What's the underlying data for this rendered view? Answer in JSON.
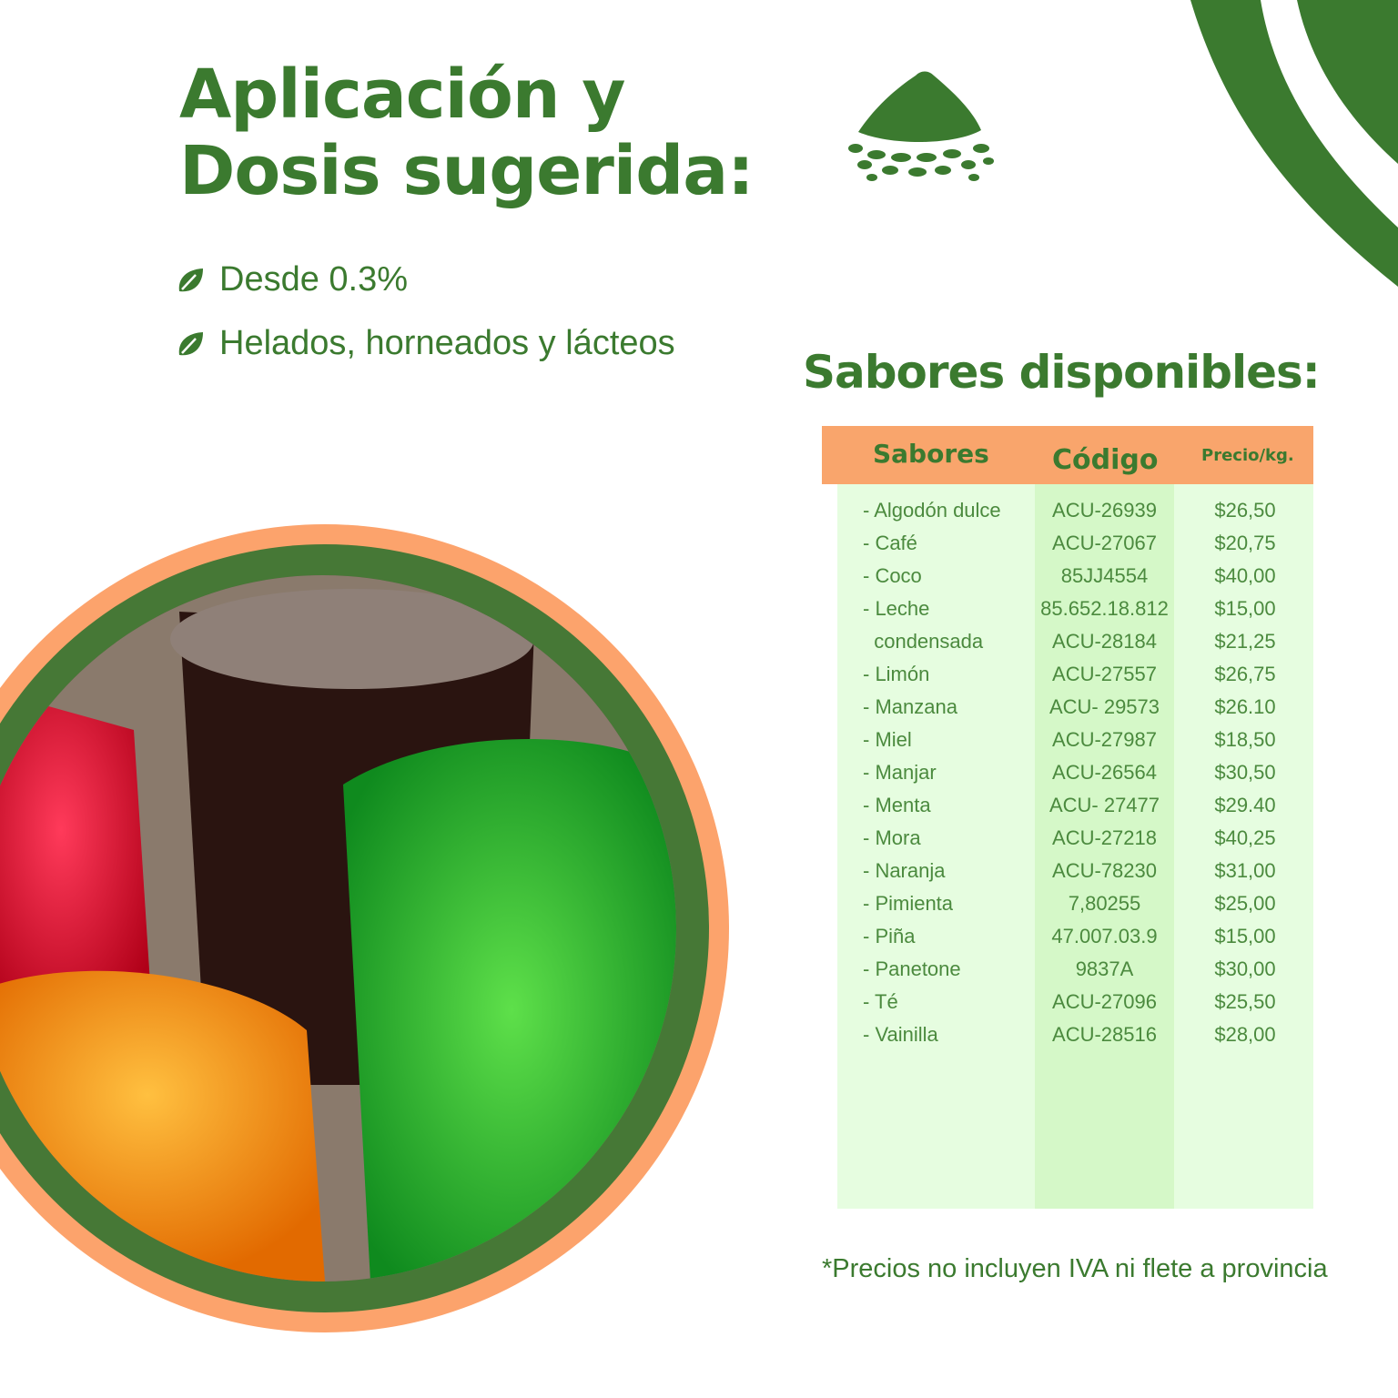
{
  "title": {
    "line1": "Aplicación y",
    "line2": "Dosis sugerida:"
  },
  "bullets": [
    "Desde 0.3%",
    "Helados, horneados y lácteos"
  ],
  "bullet_icon": "leaf-icon",
  "section_title": "Sabores disponibles:",
  "colors": {
    "brand_green": "#3b7a2f",
    "header_orange": "#f9a56c",
    "table_bg": "#e6fde0",
    "code_column_bg": "#d5f8c8"
  },
  "table": {
    "headers": [
      "Sabores",
      "Código",
      "Precio/kg."
    ],
    "rows": [
      [
        "- Algodón dulce",
        "ACU-26939",
        "$26,50"
      ],
      [
        "- Café",
        "ACU-27067",
        "$20,75"
      ],
      [
        "- Coco",
        "85JJ4554",
        "$40,00"
      ],
      [
        "- Leche",
        "85.652.18.812",
        "$15,00"
      ],
      [
        "  condensada",
        "ACU-28184",
        "$21,25"
      ],
      [
        "- Limón",
        "ACU-27557",
        "$26,75"
      ],
      [
        "- Manzana",
        "ACU- 29573",
        "$26.10"
      ],
      [
        "- Miel",
        "ACU-27987",
        "$18,50"
      ],
      [
        "- Manjar",
        "ACU-26564",
        "$30,50"
      ],
      [
        "- Menta",
        "ACU- 27477",
        "$29.40"
      ],
      [
        "- Mora",
        "ACU-27218",
        "$40,25"
      ],
      [
        "- Naranja",
        "ACU-78230",
        "$31,00"
      ],
      [
        "- Pimienta",
        "7,80255",
        "$25,00"
      ],
      [
        "- Piña",
        "47.007.03.9",
        "$15,00"
      ],
      [
        "- Panetone",
        "9837A",
        "$30,00"
      ],
      [
        "- Té",
        "ACU-27096",
        "$25,50"
      ],
      [
        "- Vainilla",
        "ACU-28516",
        "$28,00"
      ]
    ]
  },
  "footnote": "*Precios no incluyen IVA ni flete a provincia"
}
